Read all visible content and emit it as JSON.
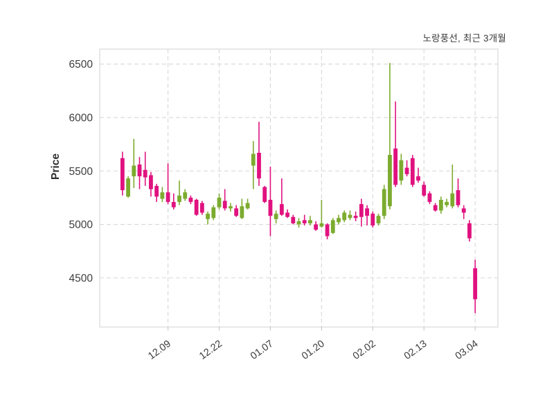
{
  "title": "노랑풍선, 최근 3개월",
  "chart_data": {
    "type": "candlestick",
    "title": "노랑풍선, 최근 3개월",
    "xlabel": "",
    "ylabel": "Price",
    "ylim": [
      4040,
      6640
    ],
    "yticks": [
      4500,
      5000,
      5500,
      6000,
      6500
    ],
    "xtick_labels": [
      "12.09",
      "12.22",
      "01.07",
      "01.20",
      "02.02",
      "02.13",
      "03.04"
    ],
    "xtick_indices": [
      8,
      17,
      26,
      35,
      44,
      53,
      62
    ],
    "grid": true,
    "legend": "none",
    "colors": {
      "up": "#7cab2f",
      "down": "#e0127f",
      "grid": "#d7d7d7",
      "spine": "#e3e3e3",
      "tick_text": "#3d3d3d",
      "background": "#ffffff"
    },
    "candles_format": [
      "open",
      "high",
      "low",
      "close"
    ],
    "candles": [
      [
        5620,
        5680,
        5270,
        5320
      ],
      [
        5260,
        5450,
        5250,
        5430
      ],
      [
        5450,
        5800,
        5340,
        5550
      ],
      [
        5560,
        5630,
        5330,
        5450
      ],
      [
        5510,
        5680,
        5360,
        5440
      ],
      [
        5460,
        5490,
        5260,
        5330
      ],
      [
        5360,
        5380,
        5210,
        5260
      ],
      [
        5240,
        5350,
        5210,
        5300
      ],
      [
        5300,
        5570,
        5190,
        5210
      ],
      [
        5210,
        5290,
        5140,
        5160
      ],
      [
        5210,
        5410,
        5180,
        5270
      ],
      [
        5240,
        5330,
        5220,
        5300
      ],
      [
        5250,
        5270,
        5190,
        5210
      ],
      [
        5230,
        5240,
        5080,
        5090
      ],
      [
        5200,
        5220,
        5090,
        5110
      ],
      [
        5050,
        5120,
        5000,
        5100
      ],
      [
        5060,
        5180,
        5040,
        5160
      ],
      [
        5160,
        5290,
        5140,
        5250
      ],
      [
        5220,
        5330,
        5130,
        5150
      ],
      [
        5150,
        5200,
        5120,
        5170
      ],
      [
        5150,
        5180,
        5070,
        5080
      ],
      [
        5060,
        5240,
        5050,
        5170
      ],
      [
        5150,
        5240,
        5140,
        5200
      ],
      [
        5550,
        5780,
        5330,
        5660
      ],
      [
        5670,
        5960,
        5360,
        5430
      ],
      [
        5350,
        5360,
        5200,
        5210
      ],
      [
        5230,
        5540,
        4890,
        5080
      ],
      [
        5050,
        5130,
        5010,
        5100
      ],
      [
        5190,
        5430,
        5080,
        5090
      ],
      [
        5110,
        5140,
        5060,
        5070
      ],
      [
        5070,
        5090,
        5000,
        5010
      ],
      [
        5000,
        5060,
        4970,
        5030
      ],
      [
        5040,
        5090,
        4990,
        5010
      ],
      [
        5010,
        5080,
        4990,
        5040
      ],
      [
        5000,
        5030,
        4940,
        4950
      ],
      [
        4980,
        5230,
        4970,
        5010
      ],
      [
        5000,
        5010,
        4860,
        4890
      ],
      [
        4920,
        5060,
        4910,
        5040
      ],
      [
        5020,
        5090,
        5000,
        5060
      ],
      [
        5040,
        5130,
        5020,
        5110
      ],
      [
        5060,
        5130,
        5040,
        5090
      ],
      [
        5080,
        5120,
        5030,
        5060
      ],
      [
        5190,
        5240,
        4980,
        5070
      ],
      [
        5150,
        5180,
        4990,
        5080
      ],
      [
        5100,
        5120,
        4970,
        4990
      ],
      [
        5010,
        5100,
        4990,
        5080
      ],
      [
        5080,
        5370,
        5050,
        5330
      ],
      [
        5170,
        6510,
        5140,
        5650
      ],
      [
        5710,
        6150,
        5350,
        5370
      ],
      [
        5410,
        5660,
        5370,
        5600
      ],
      [
        5530,
        5600,
        5450,
        5470
      ],
      [
        5620,
        5650,
        5350,
        5370
      ],
      [
        5450,
        5530,
        5390,
        5410
      ],
      [
        5370,
        5400,
        5260,
        5270
      ],
      [
        5290,
        5310,
        5190,
        5210
      ],
      [
        5180,
        5200,
        5120,
        5130
      ],
      [
        5130,
        5260,
        5100,
        5230
      ],
      [
        5180,
        5240,
        5160,
        5210
      ],
      [
        5170,
        5560,
        5150,
        5290
      ],
      [
        5320,
        5430,
        5160,
        5180
      ],
      [
        5150,
        5180,
        5050,
        5110
      ],
      [
        5010,
        5040,
        4840,
        4870
      ],
      [
        4590,
        4670,
        4170,
        4300
      ]
    ]
  }
}
